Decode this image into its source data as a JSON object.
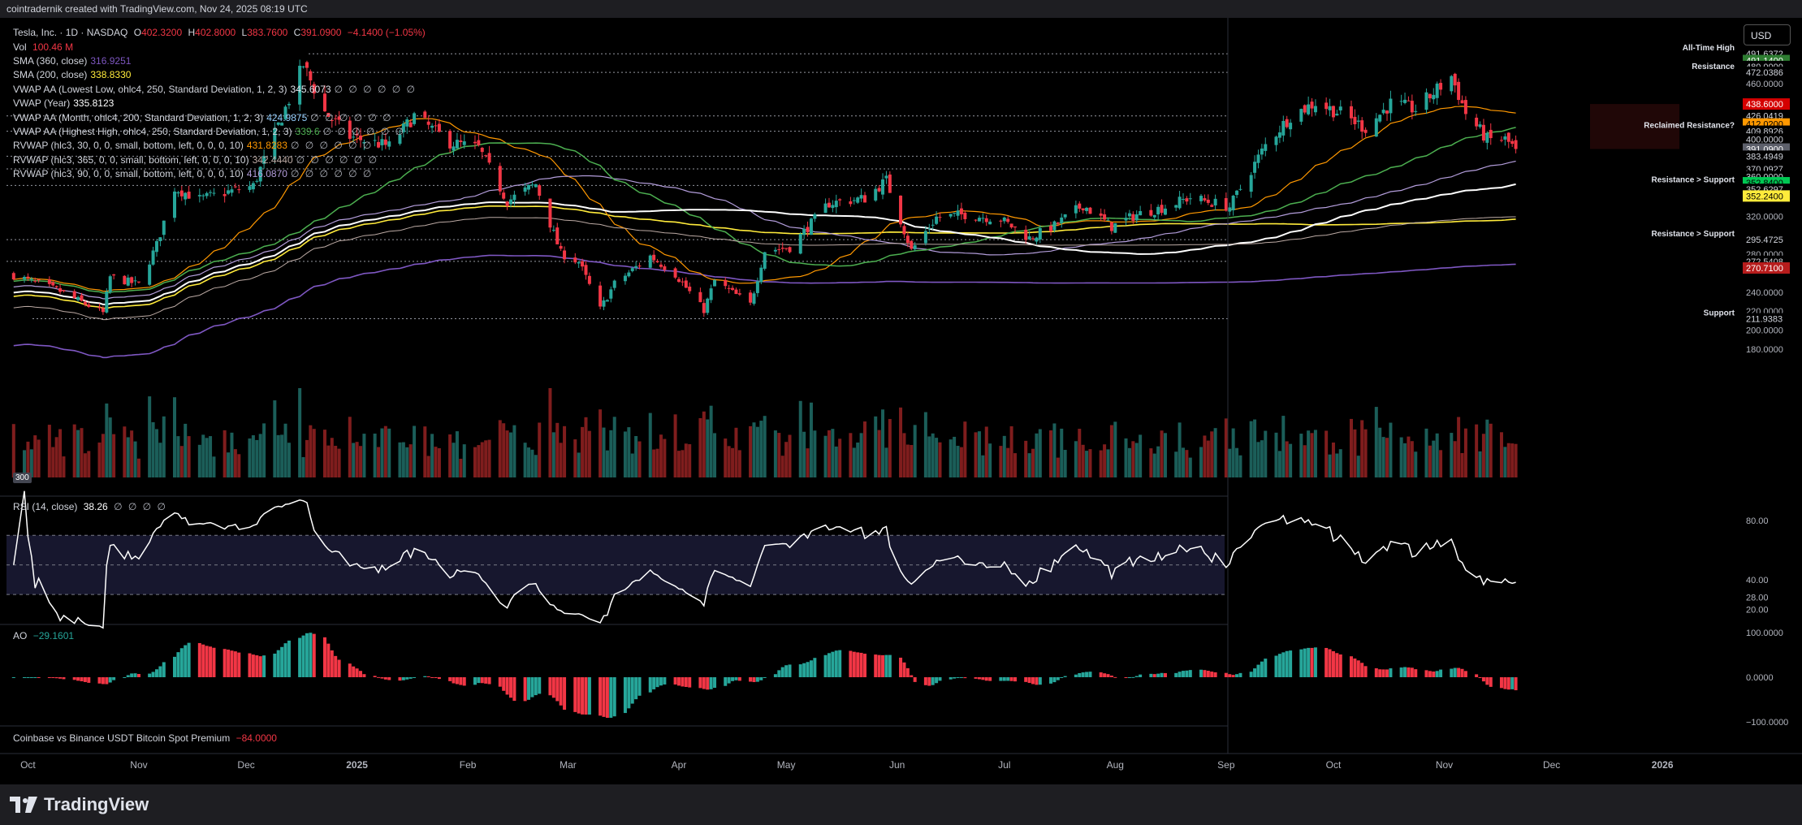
{
  "header": {
    "caption": "cointradernik created with TradingView.com, Nov 24, 2025 08:19 UTC"
  },
  "footer": {
    "brand": "TradingView"
  },
  "currency_button": "USD",
  "legend": {
    "symbol": "Tesla, Inc. · 1D · NASDAQ",
    "o_label": "O",
    "o": "402.3200",
    "h_label": "H",
    "h": "402.8000",
    "l_label": "L",
    "l": "383.7600",
    "c_label": "C",
    "c": "391.0900",
    "change": "−4.1400 (−1.05%)",
    "vol_label": "Vol",
    "vol": "100.46 M",
    "vol_badge": "300",
    "indicators": [
      {
        "label": "SMA (360, close)",
        "value": "316.9251",
        "color": "#7e57c2",
        "dots": ""
      },
      {
        "label": "SMA (200, close)",
        "value": "338.8330",
        "color": "#ffeb3b",
        "dots": ""
      },
      {
        "label": "VWAP AA (Lowest Low, ohlc4, 250, Standard Deviation, 1, 2, 3)",
        "value": "345.6073",
        "color": "#e0e3eb",
        "dots": "∅ ∅ ∅ ∅ ∅ ∅"
      },
      {
        "label": "VWAP (Year)",
        "value": "335.8123",
        "color": "#ffffff",
        "dots": ""
      },
      {
        "label": "VWAP AA (Month, ohlc4, 200, Standard Deviation, 1, 2, 3)",
        "value": "424.9875",
        "color": "#90caf9",
        "dots": "∅ ∅ ∅ ∅ ∅ ∅"
      },
      {
        "label": "VWAP AA (Highest High, ohlc4, 250, Standard Deviation, 1, 2, 3)",
        "value": "339.6",
        "color": "#4caf50",
        "dots": "∅ ∅ ∅ ∅ ∅ ∅"
      },
      {
        "label": "RVWAP (hlc3, 30, 0, 0, small, bottom, left, 0, 0, 0, 10)",
        "value": "431.8283",
        "color": "#ff9800",
        "dots": "∅ ∅ ∅ ∅ ∅ ∅"
      },
      {
        "label": "RVWAP (hlc3, 365, 0, 0, small, bottom, left, 0, 0, 0, 10)",
        "value": "342.4440",
        "color": "#bcaaa4",
        "dots": "∅ ∅ ∅ ∅ ∅ ∅"
      },
      {
        "label": "RVWAP (hlc3, 90, 0, 0, small, bottom, left, 0, 0, 0, 10)",
        "value": "416.0870",
        "color": "#b39ddb",
        "dots": "∅ ∅ ∅ ∅ ∅ ∅"
      }
    ],
    "rsi_label": "RSI (14, close)",
    "rsi_value": "38.26",
    "rsi_dots": "∅ ∅ ∅ ∅",
    "ao_label": "AO",
    "ao_value": "−29.1601",
    "premium_label": "Coinbase vs Binance USDT Bitcoin Spot Premium",
    "premium_value": "−84.0000"
  },
  "chart_data": {
    "type": "candlestick",
    "x_ticks": [
      "Oct",
      "Nov",
      "Dec",
      "2025",
      "Feb",
      "Mar",
      "Apr",
      "May",
      "Jun",
      "Jul",
      "Aug",
      "Sep",
      "Oct",
      "Nov",
      "Dec",
      "2026"
    ],
    "price_axis": {
      "ticks": [
        "460.0000",
        "400.0000",
        "320.0000",
        "280.0000",
        "240.0000",
        "220.0000",
        "200.0000",
        "180.0000"
      ],
      "labels": [
        {
          "text": "491.6372",
          "value": 491.6372,
          "bg": "#000000",
          "fg": "#d1d4dc"
        },
        {
          "text": "491.1400",
          "value": 484.5,
          "bg": "#2e7d32",
          "fg": "#ffffff"
        },
        {
          "text": "480.0000",
          "value": 478.2,
          "bg": "#000000",
          "fg": "#d1d4dc"
        },
        {
          "text": "472.0386",
          "value": 472.0386,
          "bg": "#000000",
          "fg": "#d1d4dc"
        },
        {
          "text": "438.6000",
          "value": 438.6,
          "bg": "#d50000",
          "fg": "#ffffff"
        },
        {
          "text": "426.0419",
          "value": 426.0419,
          "bg": "#000000",
          "fg": "#d1d4dc"
        },
        {
          "text": "412.0200",
          "value": 417.5,
          "bg": "#ff9800",
          "fg": "#000000"
        },
        {
          "text": "409.8926",
          "value": 409.8926,
          "bg": "#000000",
          "fg": "#d1d4dc"
        },
        {
          "text": "400.0000",
          "value": 401.5,
          "bg": "#000000",
          "fg": "#d1d4dc"
        },
        {
          "text": "391.0900",
          "value": 391.09,
          "bg": "#5d606b",
          "fg": "#ffffff"
        },
        {
          "text": "383.4949",
          "value": 383.4949,
          "bg": "#000000",
          "fg": "#d1d4dc"
        },
        {
          "text": "370.0927",
          "value": 370.0927,
          "bg": "#000000",
          "fg": "#d1d4dc"
        },
        {
          "text": "360.0000",
          "value": 362.0,
          "bg": "#000000",
          "fg": "#d1d4dc"
        },
        {
          "text": "352.8400",
          "value": 355.5,
          "bg": "#00c853",
          "fg": "#000000"
        },
        {
          "text": "352.6297",
          "value": 348.5,
          "bg": "#000000",
          "fg": "#d1d4dc"
        },
        {
          "text": "352.2400",
          "value": 341.5,
          "bg": "#ffeb3b",
          "fg": "#000000"
        },
        {
          "text": "295.4725",
          "value": 295.4725,
          "bg": "#000000",
          "fg": "#d1d4dc"
        },
        {
          "text": "272.5408",
          "value": 272.5408,
          "bg": "#000000",
          "fg": "#d1d4dc"
        },
        {
          "text": "270.7100",
          "value": 265.5,
          "bg": "#b71c1c",
          "fg": "#ffffff"
        },
        {
          "text": "211.9383",
          "value": 211.9383,
          "bg": "#000000",
          "fg": "#d1d4dc"
        }
      ]
    },
    "levels": [
      {
        "label": "All-Time High",
        "value": 491.6372
      },
      {
        "label": "Resistance",
        "value": 472.0386
      },
      {
        "label": "",
        "value": 426.0419
      },
      {
        "label": "Reclaimed Resistance?",
        "value": 409.8926
      },
      {
        "label": "",
        "value": 383.4949
      },
      {
        "label": "",
        "value": 370.0927
      },
      {
        "label": "Resistance > Support",
        "value": 352.6297
      },
      {
        "label": "Resistance > Support",
        "value": 295.4725
      },
      {
        "label": "",
        "value": 272.5408
      },
      {
        "label": "Support",
        "value": 211.9383
      }
    ],
    "price_anchors": [
      [
        "2024-09-27",
        258
      ],
      [
        "2024-10-10",
        241
      ],
      [
        "2024-10-22",
        218
      ],
      [
        "2024-10-24",
        256
      ],
      [
        "2024-11-01",
        248
      ],
      [
        "2024-11-06",
        290
      ],
      [
        "2024-11-11",
        350
      ],
      [
        "2024-11-18",
        338
      ],
      [
        "2024-11-25",
        345
      ],
      [
        "2024-12-03",
        352
      ],
      [
        "2024-12-11",
        425
      ],
      [
        "2024-12-17",
        480
      ],
      [
        "2024-12-23",
        430
      ],
      [
        "2024-12-30",
        404
      ],
      [
        "2025-01-10",
        394
      ],
      [
        "2025-01-17",
        426
      ],
      [
        "2025-01-27",
        398
      ],
      [
        "2025-02-04",
        392
      ],
      [
        "2025-02-12",
        336
      ],
      [
        "2025-02-20",
        354
      ],
      [
        "2025-02-27",
        281
      ],
      [
        "2025-03-04",
        272
      ],
      [
        "2025-03-10",
        222
      ],
      [
        "2025-03-14",
        249
      ],
      [
        "2025-03-24",
        278
      ],
      [
        "2025-03-31",
        259
      ],
      [
        "2025-04-08",
        221
      ],
      [
        "2025-04-11",
        252
      ],
      [
        "2025-04-21",
        227
      ],
      [
        "2025-04-25",
        284
      ],
      [
        "2025-05-02",
        287
      ],
      [
        "2025-05-13",
        334
      ],
      [
        "2025-05-23",
        339
      ],
      [
        "2025-05-29",
        358
      ],
      [
        "2025-06-05",
        284
      ],
      [
        "2025-06-12",
        319
      ],
      [
        "2025-06-20",
        322
      ],
      [
        "2025-06-30",
        317
      ],
      [
        "2025-07-08",
        297
      ],
      [
        "2025-07-15",
        310
      ],
      [
        "2025-07-23",
        332
      ],
      [
        "2025-07-31",
        309
      ],
      [
        "2025-08-07",
        322
      ],
      [
        "2025-08-15",
        330
      ],
      [
        "2025-08-22",
        340
      ],
      [
        "2025-09-02",
        330
      ],
      [
        "2025-09-12",
        395
      ],
      [
        "2025-09-19",
        426
      ],
      [
        "2025-09-26",
        440
      ],
      [
        "2025-10-03",
        429
      ],
      [
        "2025-10-10",
        413
      ],
      [
        "2025-10-17",
        439
      ],
      [
        "2025-10-24",
        433
      ],
      [
        "2025-11-03",
        468
      ],
      [
        "2025-11-07",
        429
      ],
      [
        "2025-11-13",
        401
      ],
      [
        "2025-11-18",
        401
      ],
      [
        "2025-11-21",
        391
      ]
    ],
    "last_close": 391.09,
    "rsi": {
      "ticks": [
        "80.00",
        "40.00",
        "28.00",
        "20.00"
      ],
      "last": 38.26
    },
    "ao": {
      "ticks": [
        "100.0000",
        "0.0000",
        "−100.0000"
      ],
      "last": -29.1601
    },
    "premium": {
      "last": -84.0
    }
  }
}
